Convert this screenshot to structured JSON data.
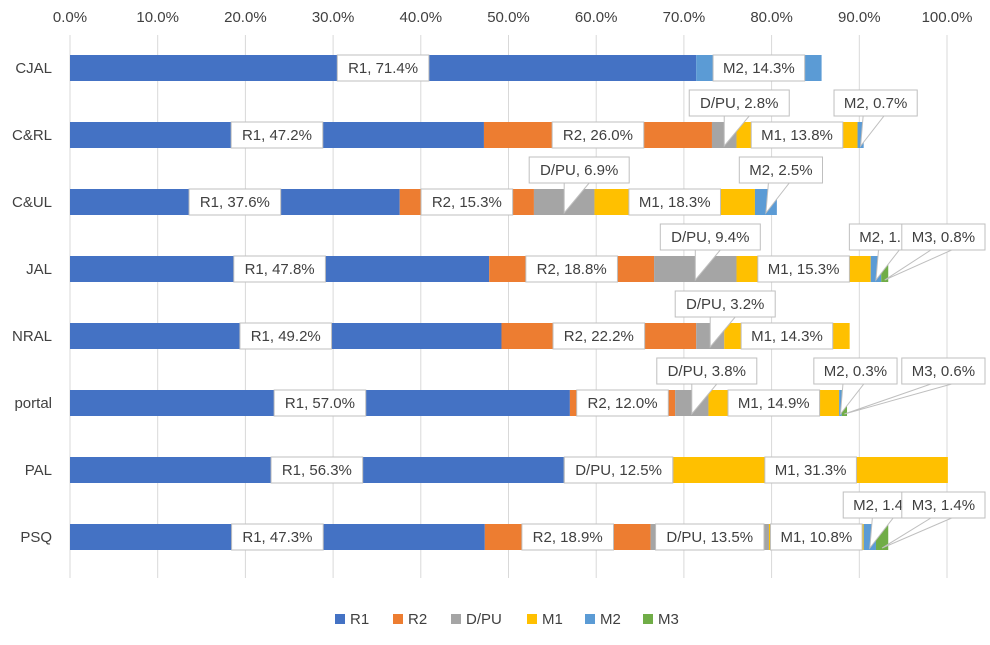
{
  "chart_data": {
    "type": "bar",
    "orientation": "horizontal",
    "stacked": true,
    "categories": [
      "CJAL",
      "C&RL",
      "C&UL",
      "JAL",
      "NRAL",
      "portal",
      "PAL",
      "PSQ"
    ],
    "xlim": [
      0,
      100
    ],
    "x_ticks": [
      "0.0%",
      "10.0%",
      "20.0%",
      "30.0%",
      "40.0%",
      "50.0%",
      "60.0%",
      "70.0%",
      "80.0%",
      "90.0%",
      "100.0%"
    ],
    "x_axis_position": "top",
    "grid": true,
    "legend": "bottom",
    "series": [
      {
        "name": "R1",
        "color": "#4472C4",
        "values": [
          71.4,
          47.2,
          37.6,
          47.8,
          49.2,
          57.0,
          56.3,
          47.3
        ]
      },
      {
        "name": "R2",
        "color": "#ED7D31",
        "values": [
          0,
          26.0,
          15.3,
          18.8,
          22.2,
          12.0,
          0,
          18.9
        ]
      },
      {
        "name": "D/PU",
        "color": "#A5A5A5",
        "values": [
          0,
          2.8,
          6.9,
          9.4,
          3.2,
          3.8,
          12.5,
          13.5
        ]
      },
      {
        "name": "M1",
        "color": "#FFC000",
        "values": [
          0,
          13.8,
          18.3,
          15.3,
          14.3,
          14.9,
          31.3,
          10.8
        ]
      },
      {
        "name": "M2",
        "color": "#5B9BD5",
        "values": [
          14.3,
          0.7,
          2.5,
          1.2,
          0,
          0.3,
          0,
          1.4
        ]
      },
      {
        "name": "M3",
        "color": "#70AD47",
        "values": [
          0,
          0,
          0,
          0.8,
          0,
          0.6,
          0,
          1.4
        ]
      }
    ]
  }
}
